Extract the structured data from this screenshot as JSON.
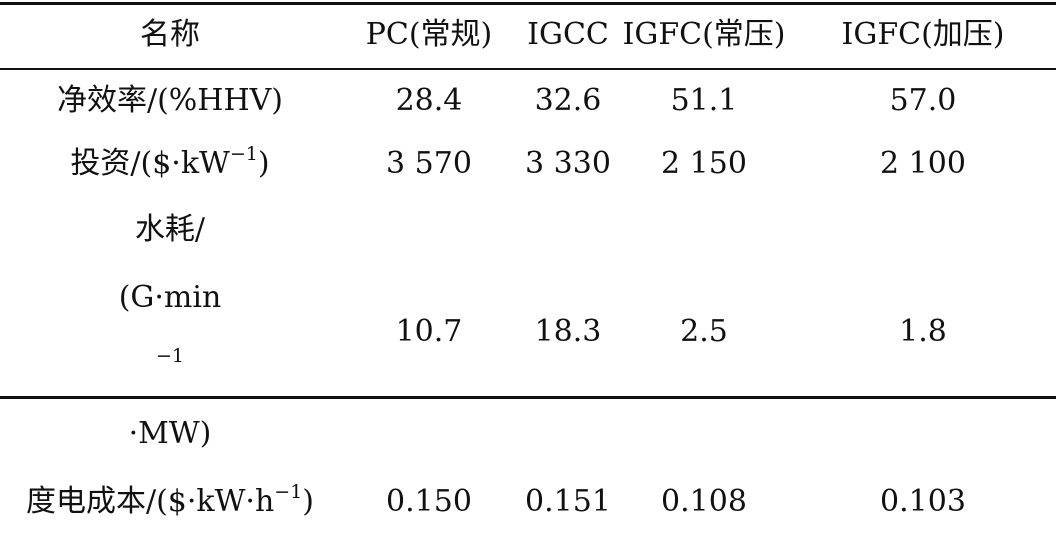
{
  "table": {
    "columns": [
      "名称",
      "PC(常规)",
      "IGCC",
      "IGFC(常压)",
      "IGFC(加压)"
    ],
    "rows": [
      {
        "label": "净效率/(%HHV)",
        "values": [
          "28.4",
          "32.6",
          "51.1",
          "57.0"
        ]
      },
      {
        "label_prefix": "投资/($·kW",
        "label_sup": "−1",
        "label_suffix": ")",
        "values": [
          "3 570",
          "3 330",
          "2 150",
          "2 100"
        ]
      },
      {
        "label_line1": "水耗/",
        "label_line2_prefix": "(G·min",
        "label_line2_sup": "−1",
        "label_line2_suffix": "·MW)",
        "values": [
          "10.7",
          "18.3",
          "2.5",
          "1.8"
        ]
      },
      {
        "label_prefix": "度电成本/($·kW·h",
        "label_sup": "−1",
        "label_suffix": ")",
        "values": [
          "0.150",
          "0.151",
          "0.108",
          "0.103"
        ]
      }
    ]
  }
}
